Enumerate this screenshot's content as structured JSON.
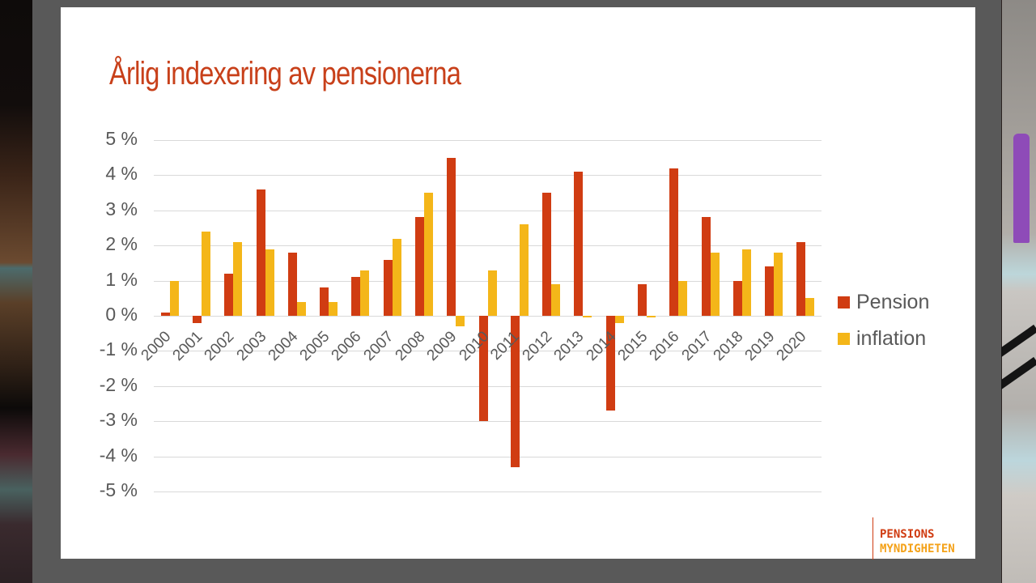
{
  "slide": {
    "title": "Årlig indexering av pensionerna",
    "logo": {
      "line1": "PENSIONS",
      "line2": "MYNDIGHETEN"
    }
  },
  "colors": {
    "pension": "#d03c12",
    "inflation": "#f4b619",
    "title": "#c8401a",
    "axis_text": "#595959"
  },
  "chart_data": {
    "type": "bar",
    "title": "Årlig indexering av pensionerna",
    "xlabel": "",
    "ylabel": "",
    "ylim": [
      -5,
      5
    ],
    "yticks": [
      "5 %",
      "4 %",
      "3 %",
      "2 %",
      "1 %",
      "0 %",
      "-1 %",
      "-2 %",
      "-3 %",
      "-4 %",
      "-5 %"
    ],
    "grid": true,
    "legend_position": "right",
    "categories": [
      "2000",
      "2001",
      "2002",
      "2003",
      "2004",
      "2005",
      "2006",
      "2007",
      "2008",
      "2009",
      "2010",
      "2011",
      "2012",
      "2013",
      "2014",
      "2015",
      "2016",
      "2017",
      "2018",
      "2019",
      "2020"
    ],
    "series": [
      {
        "name": "Pension",
        "values": [
          0.1,
          -0.2,
          1.2,
          3.6,
          1.8,
          0.8,
          1.1,
          1.6,
          2.8,
          4.5,
          -3.0,
          -4.3,
          3.5,
          4.1,
          -2.7,
          0.9,
          4.2,
          2.8,
          1.0,
          1.4,
          2.1
        ]
      },
      {
        "name": "inflation",
        "values": [
          1.0,
          2.4,
          2.1,
          1.9,
          0.4,
          0.4,
          1.3,
          2.2,
          3.5,
          -0.3,
          1.3,
          2.6,
          0.9,
          -0.04,
          -0.2,
          -0.05,
          1.0,
          1.8,
          1.9,
          1.8,
          0.5
        ]
      }
    ]
  }
}
